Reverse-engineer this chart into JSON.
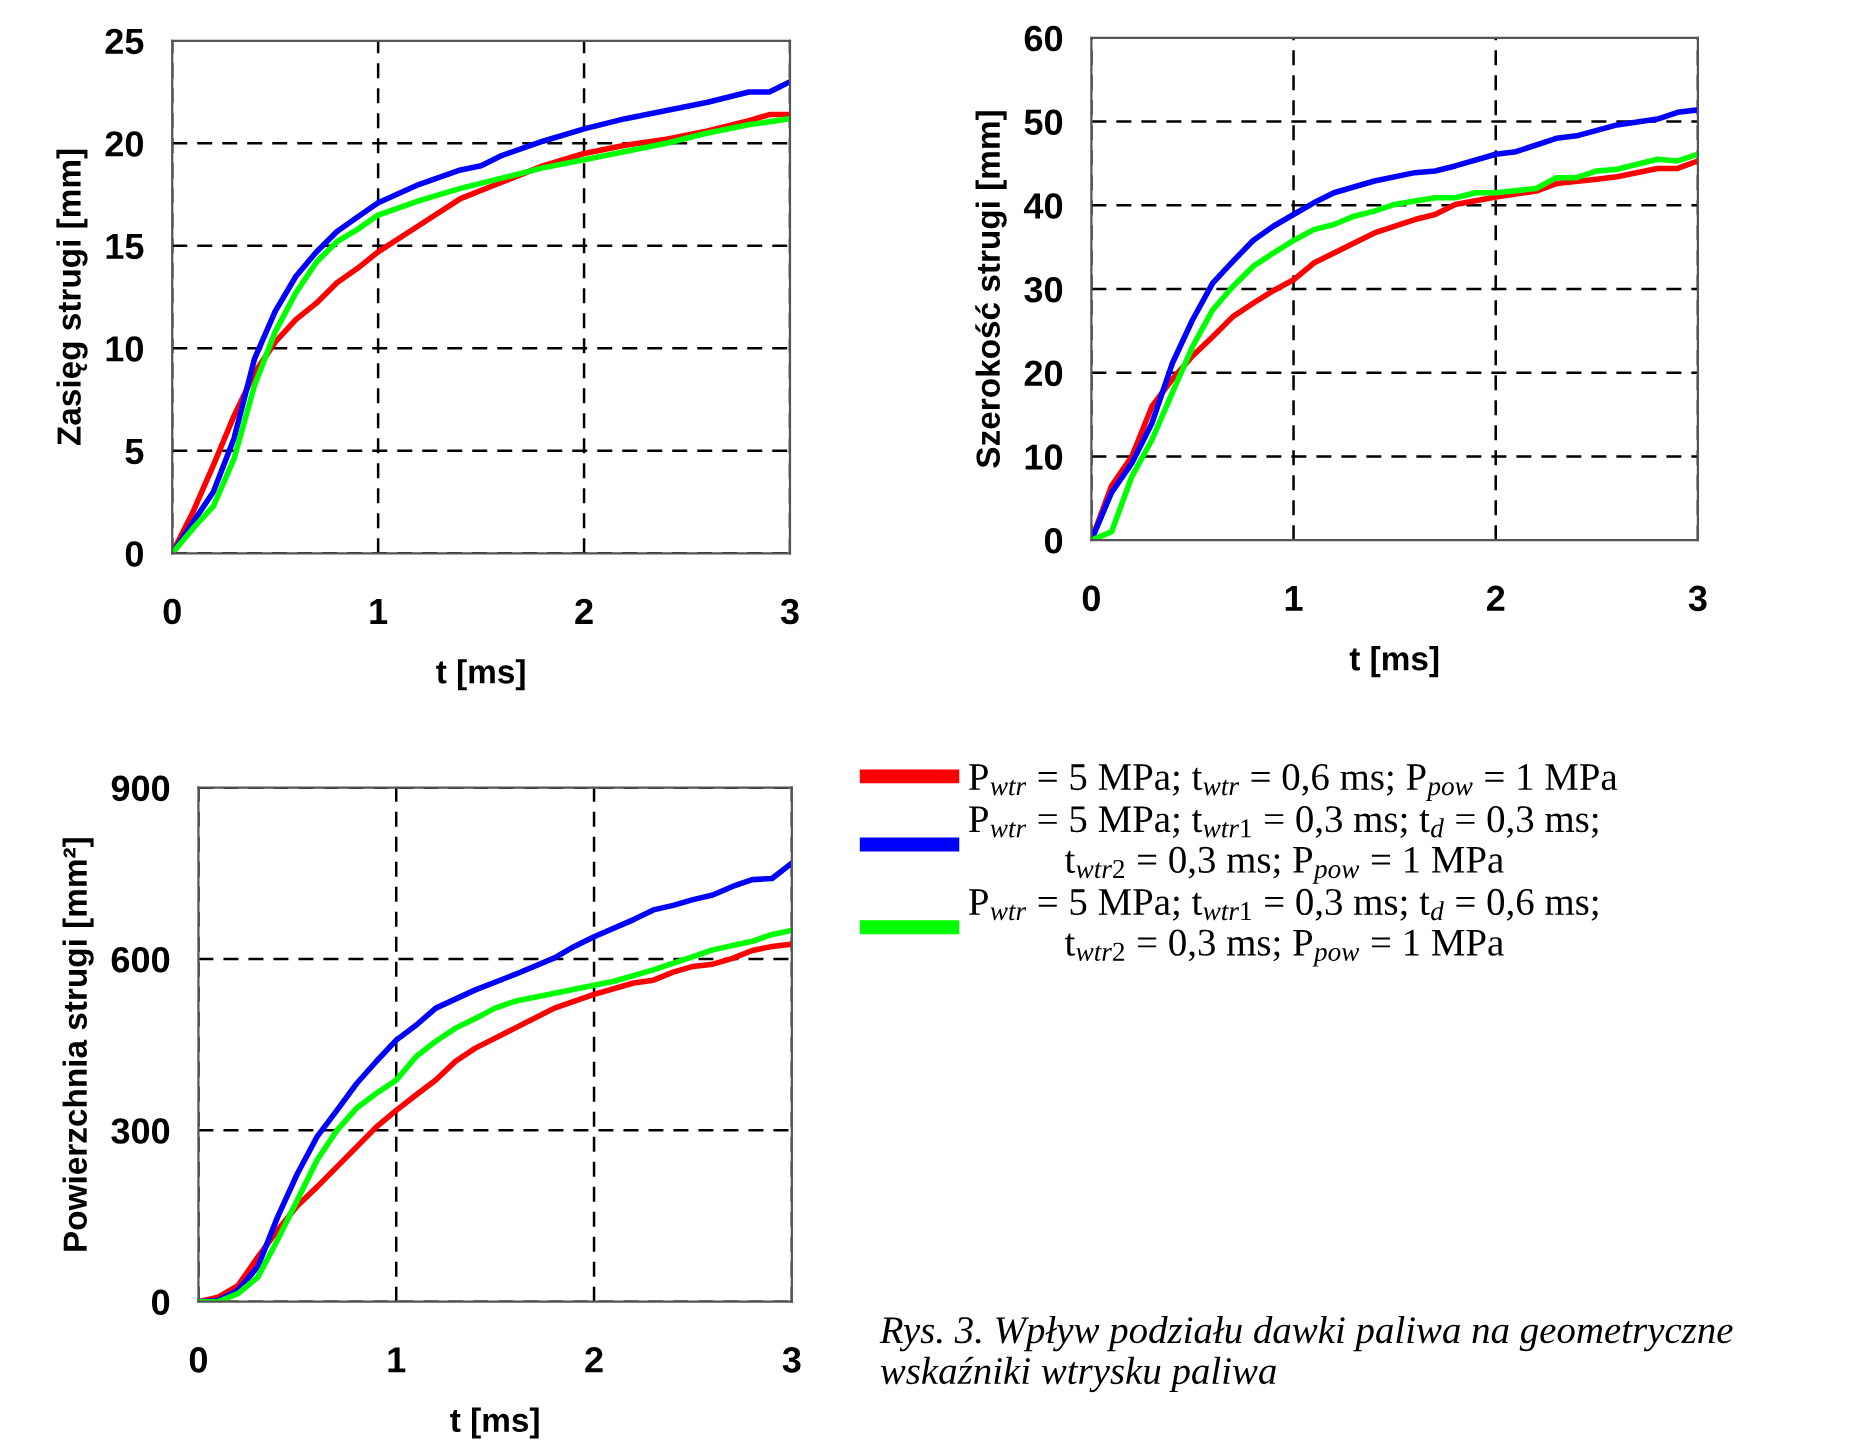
{
  "chart_data": [
    {
      "type": "line",
      "ylabel": "Zasięg strugi [mm]",
      "xlabel": "t [ms]",
      "xlim": [
        0,
        3
      ],
      "xticks": [
        0,
        1,
        2,
        3
      ],
      "ylim": [
        0,
        25
      ],
      "yticks": [
        0,
        5,
        10,
        15,
        20,
        25
      ],
      "grid": true,
      "series": [
        {
          "color": "#ff0000",
          "x": [
            0,
            0.1,
            0.2,
            0.3,
            0.4,
            0.5,
            0.6,
            0.7,
            0.8,
            0.9,
            1.0,
            1.2,
            1.4,
            1.6,
            1.8,
            2.0,
            2.2,
            2.4,
            2.6,
            2.8,
            2.9,
            3.0
          ],
          "values": [
            0,
            2.0,
            4.3,
            6.7,
            8.8,
            10.3,
            11.4,
            12.2,
            13.2,
            13.9,
            14.7,
            16.0,
            17.3,
            18.1,
            18.9,
            19.5,
            19.9,
            20.2,
            20.6,
            21.1,
            21.4,
            21.4
          ]
        },
        {
          "color": "#0000ff",
          "x": [
            0,
            0.1,
            0.2,
            0.3,
            0.4,
            0.5,
            0.6,
            0.7,
            0.8,
            0.9,
            1.0,
            1.2,
            1.4,
            1.5,
            1.6,
            1.8,
            2.0,
            2.2,
            2.4,
            2.6,
            2.8,
            2.9,
            3.0
          ],
          "values": [
            0,
            1.5,
            3.0,
            5.6,
            9.5,
            11.8,
            13.5,
            14.7,
            15.7,
            16.4,
            17.1,
            18.0,
            18.7,
            18.9,
            19.4,
            20.1,
            20.7,
            21.2,
            21.6,
            22.0,
            22.5,
            22.5,
            23.0
          ]
        },
        {
          "color": "#00ff00",
          "x": [
            0,
            0.1,
            0.2,
            0.3,
            0.4,
            0.5,
            0.6,
            0.7,
            0.8,
            0.9,
            1.0,
            1.2,
            1.4,
            1.6,
            1.8,
            2.0,
            2.2,
            2.4,
            2.6,
            2.8,
            3.0
          ],
          "values": [
            0,
            1.2,
            2.3,
            4.6,
            8.2,
            10.8,
            12.7,
            14.2,
            15.2,
            15.8,
            16.5,
            17.2,
            17.8,
            18.3,
            18.8,
            19.2,
            19.6,
            20.0,
            20.5,
            20.9,
            21.2
          ]
        }
      ]
    },
    {
      "type": "line",
      "ylabel": "Szerokość strugi [mm]",
      "xlabel": "t [ms]",
      "xlim": [
        0,
        3
      ],
      "xticks": [
        0,
        1,
        2,
        3
      ],
      "ylim": [
        0,
        60
      ],
      "yticks": [
        0,
        10,
        20,
        30,
        40,
        50,
        60
      ],
      "grid": true,
      "series": [
        {
          "color": "#ff0000",
          "x": [
            0,
            0.1,
            0.2,
            0.3,
            0.4,
            0.5,
            0.6,
            0.7,
            0.8,
            0.9,
            1.0,
            1.1,
            1.2,
            1.4,
            1.6,
            1.7,
            1.8,
            2.0,
            2.2,
            2.3,
            2.5,
            2.6,
            2.8,
            2.9,
            3.0
          ],
          "values": [
            0,
            6.5,
            10.0,
            16,
            19.2,
            22,
            24.3,
            26.7,
            28.3,
            29.8,
            31.1,
            33.1,
            34.3,
            36.7,
            38.3,
            38.9,
            40.1,
            41.0,
            41.7,
            42.6,
            43.1,
            43.4,
            44.4,
            44.4,
            45.3
          ]
        },
        {
          "color": "#0000ff",
          "x": [
            0,
            0.1,
            0.2,
            0.3,
            0.4,
            0.5,
            0.6,
            0.7,
            0.8,
            0.9,
            1.0,
            1.1,
            1.2,
            1.4,
            1.6,
            1.7,
            1.8,
            2.0,
            2.1,
            2.3,
            2.4,
            2.6,
            2.8,
            2.9,
            3.0
          ],
          "values": [
            0,
            5.7,
            9.2,
            14,
            21.1,
            26.3,
            30.7,
            33.3,
            35.8,
            37.5,
            38.9,
            40.3,
            41.5,
            42.9,
            43.9,
            44.1,
            44.7,
            46.1,
            46.4,
            48.0,
            48.3,
            49.6,
            50.3,
            51.1,
            51.4
          ]
        },
        {
          "color": "#00ff00",
          "x": [
            0,
            0.1,
            0.2,
            0.3,
            0.4,
            0.5,
            0.6,
            0.7,
            0.8,
            0.9,
            1.0,
            1.1,
            1.2,
            1.3,
            1.4,
            1.5,
            1.6,
            1.7,
            1.8,
            1.9,
            2.0,
            2.2,
            2.3,
            2.4,
            2.5,
            2.6,
            2.8,
            2.9,
            3.0
          ],
          "values": [
            0,
            1.0,
            7.6,
            12,
            17.6,
            23.1,
            27.5,
            30.3,
            32.7,
            34.3,
            35.8,
            37.1,
            37.7,
            38.7,
            39.3,
            40.1,
            40.5,
            40.9,
            40.9,
            41.5,
            41.5,
            42.0,
            43.3,
            43.3,
            44.1,
            44.3,
            45.5,
            45.3,
            46.1
          ]
        }
      ]
    },
    {
      "type": "line",
      "ylabel": "Powierzchnia strugi [mm²]",
      "xlabel": "t [ms]",
      "xlim": [
        0,
        3
      ],
      "xticks": [
        0,
        1,
        2,
        3
      ],
      "ylim": [
        0,
        900
      ],
      "yticks": [
        0,
        300,
        600,
        900
      ],
      "grid": true,
      "legend": "right",
      "annotations": [
        "Rys. 3. Wpływ podziału dawki paliwa na geometryczne wskaźniki wtrysku paliwa"
      ],
      "series": [
        {
          "name": "P$_{wtr}$ = 5 MPa; t$_{wtr}$ = 0,6 ms; P$_{pow}$ = 1 MPa",
          "color": "#ff0000",
          "x": [
            0,
            0.1,
            0.2,
            0.3,
            0.4,
            0.5,
            0.6,
            0.7,
            0.8,
            0.9,
            1.0,
            1.1,
            1.2,
            1.3,
            1.4,
            1.6,
            1.8,
            2.0,
            2.2,
            2.3,
            2.4,
            2.5,
            2.6,
            2.7,
            2.8,
            2.9,
            3.0
          ],
          "values": [
            0,
            8,
            28,
            78,
            125,
            168,
            201,
            236,
            271,
            306,
            335,
            362,
            388,
            421,
            444,
            479,
            514,
            538,
            558,
            563,
            577,
            587,
            591,
            601,
            615,
            622,
            626
          ]
        },
        {
          "name": "P$_{wtr}$ = 5 MPa; t$_{wtr1}$ = 0,3 ms; t$_{d}$ = 0,3 ms;\nt$_{wtr2}$ = 0,3 ms; P$_{pow}$ = 1 MPa",
          "color": "#0000ff",
          "x": [
            0,
            0.1,
            0.2,
            0.3,
            0.4,
            0.5,
            0.6,
            0.7,
            0.8,
            0.9,
            1.0,
            1.1,
            1.2,
            1.4,
            1.6,
            1.8,
            1.9,
            2.0,
            2.2,
            2.3,
            2.4,
            2.5,
            2.6,
            2.7,
            2.8,
            2.9,
            3.0
          ],
          "values": [
            0,
            2,
            20,
            61,
            148,
            224,
            289,
            335,
            382,
            421,
            458,
            484,
            514,
            546,
            573,
            602,
            622,
            639,
            669,
            686,
            694,
            704,
            712,
            727,
            739,
            741,
            768
          ]
        },
        {
          "name": "P$_{wtr}$ = 5 MPa; t$_{wtr1}$ = 0,3 ms; t$_{d}$ = 0,6 ms;\nt$_{wtr2}$ = 0,3 ms; P$_{pow}$ = 1 MPa",
          "color": "#00ff00",
          "x": [
            0,
            0.1,
            0.2,
            0.3,
            0.4,
            0.5,
            0.6,
            0.7,
            0.8,
            0.9,
            1.0,
            1.1,
            1.2,
            1.3,
            1.4,
            1.5,
            1.6,
            1.8,
            2.0,
            2.1,
            2.3,
            2.5,
            2.6,
            2.8,
            2.9,
            3.0
          ],
          "values": [
            0,
            0,
            14,
            43,
            108,
            178,
            248,
            300,
            339,
            365,
            388,
            429,
            456,
            479,
            496,
            514,
            526,
            540,
            554,
            561,
            581,
            604,
            616,
            631,
            643,
            650
          ]
        }
      ]
    }
  ]
}
